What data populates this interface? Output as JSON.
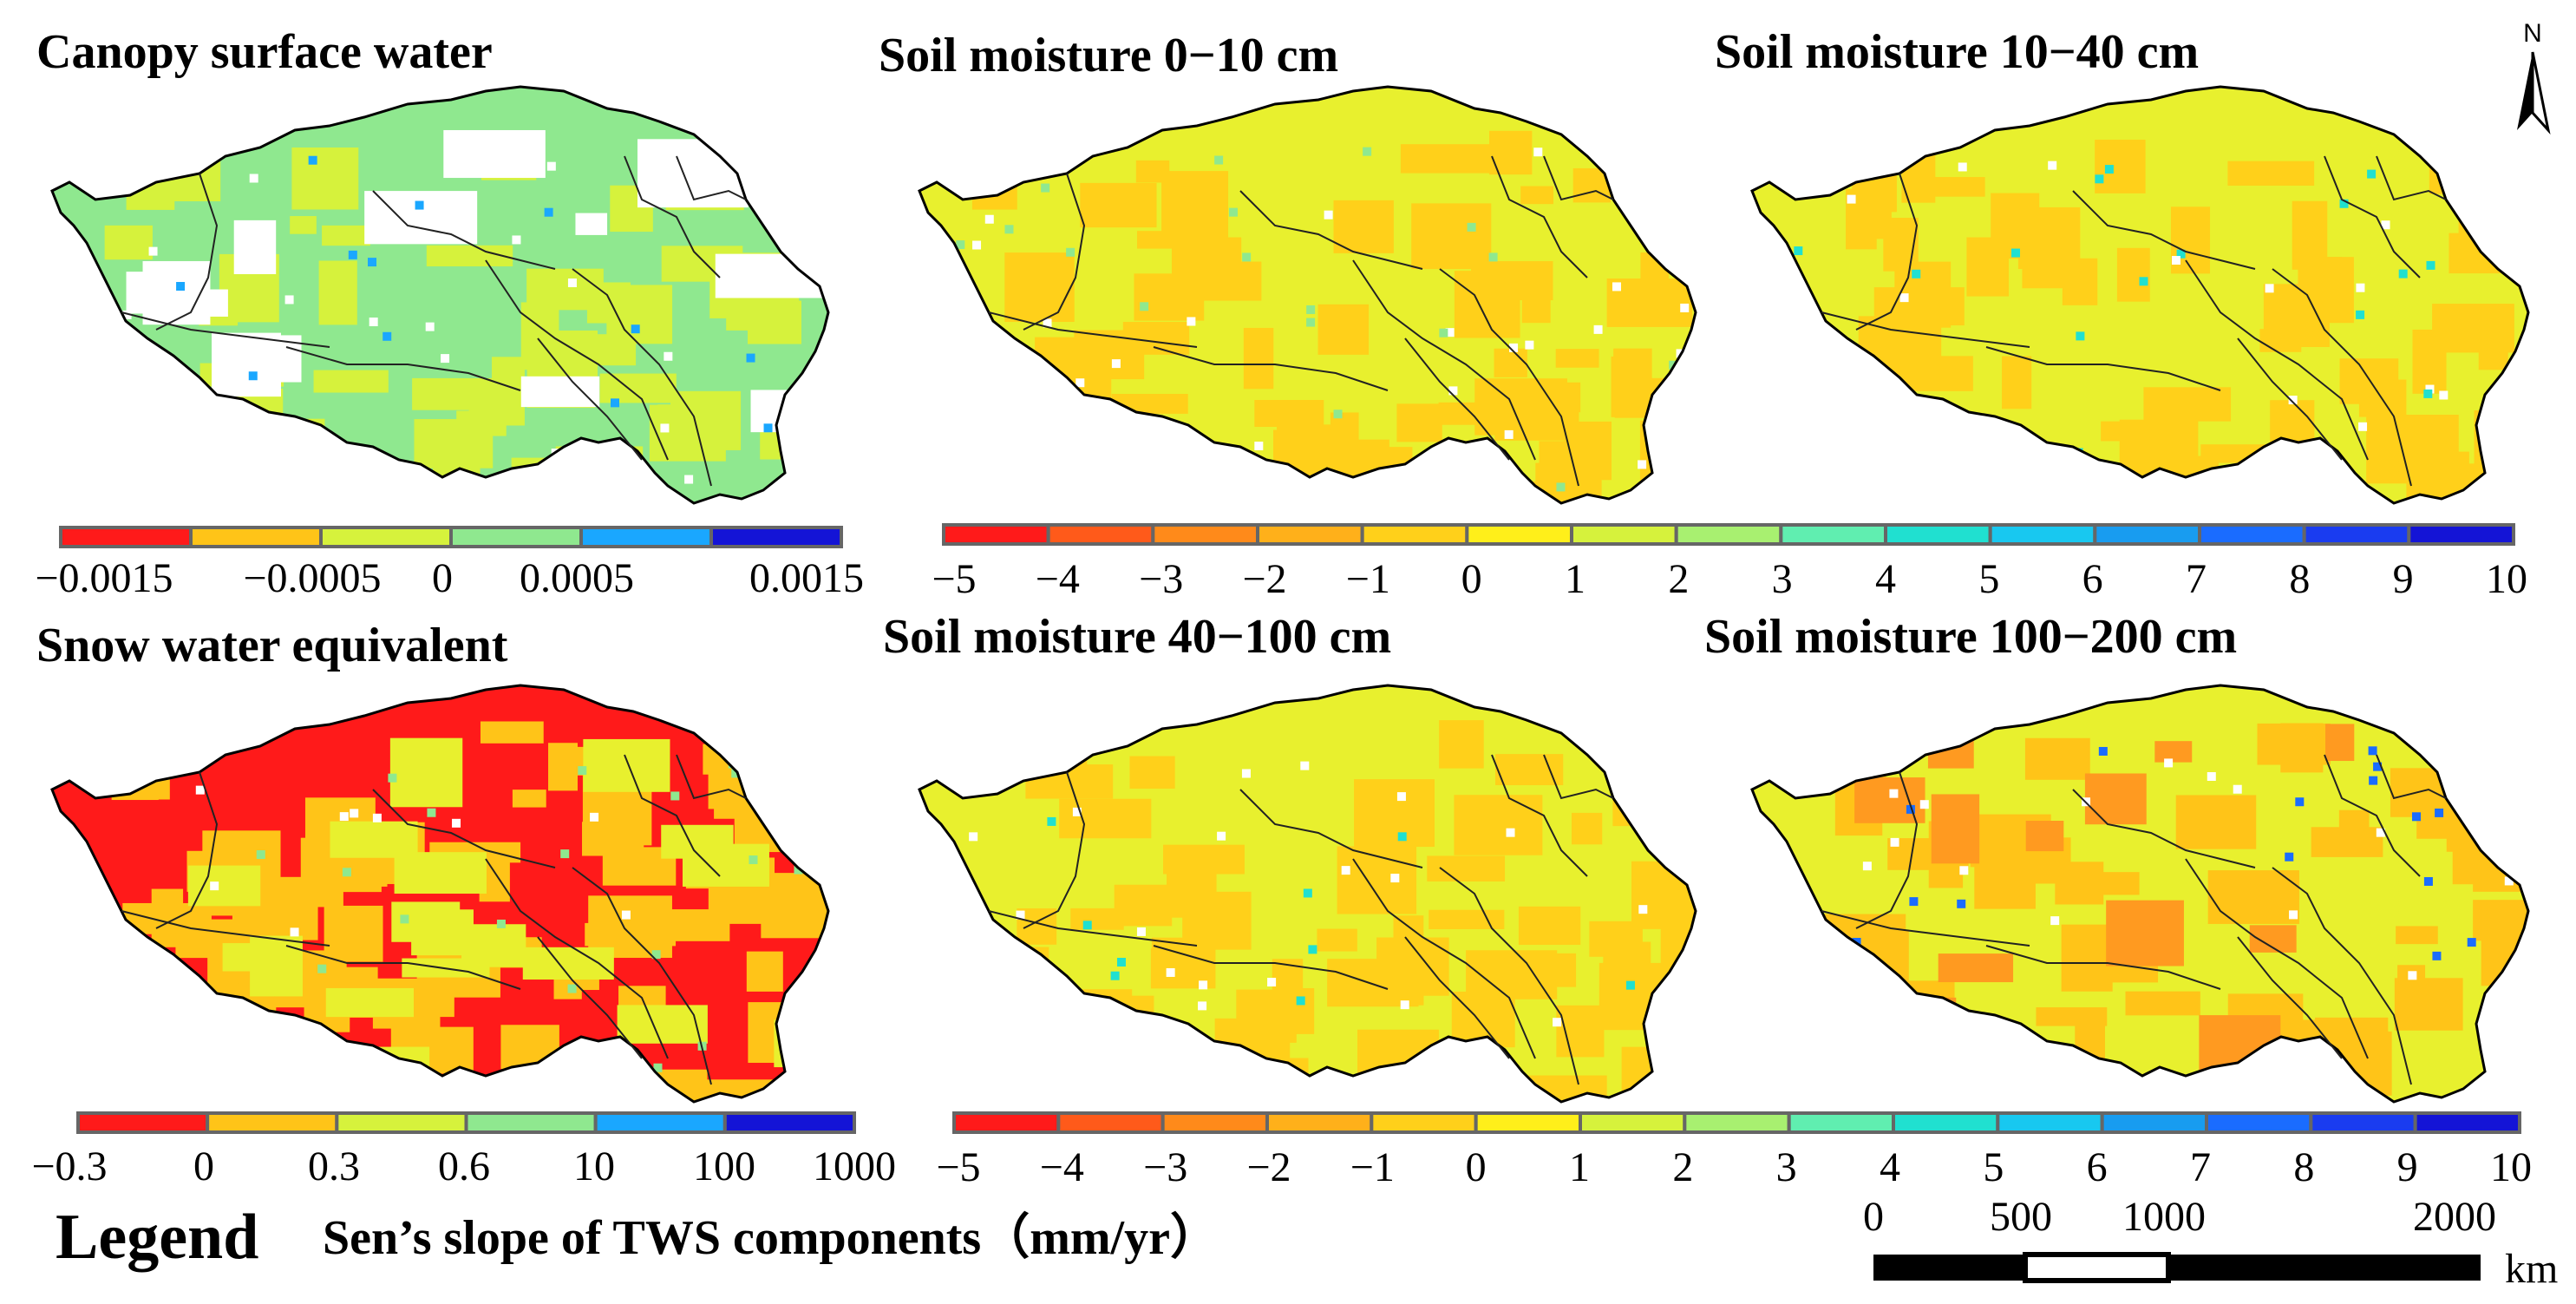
{
  "panels": [
    {
      "title": "Canopy surface water",
      "base": "#8fe88f",
      "patches": [
        "#d6f23c",
        "#ffffff"
      ],
      "spot": "#1aa7ff"
    },
    {
      "title": "Soil moisture 0−10 cm",
      "base": "#e8f02e",
      "patches": [
        "#ffd01a"
      ],
      "spot": "#8fe88f"
    },
    {
      "title": "Soil moisture 10−40 cm",
      "base": "#e8f02e",
      "patches": [
        "#ffd01a"
      ],
      "spot": "#20e0d0"
    },
    {
      "title": "Snow water equivalent",
      "base": "#ff1a1a",
      "patches": [
        "#ffc418",
        "#e8f02e"
      ],
      "spot": "#8fe88f"
    },
    {
      "title": "Soil moisture 40−100 cm",
      "base": "#e8f02e",
      "patches": [
        "#ffd01a"
      ],
      "spot": "#20e0d0"
    },
    {
      "title": "Soil moisture 100−200 cm",
      "base": "#e8f02e",
      "patches": [
        "#ffc418",
        "#ff9a20"
      ],
      "spot": "#1a6cff"
    }
  ],
  "colorbars": {
    "canopy": {
      "colors": [
        "#ff1a1a",
        "#ffc418",
        "#d6f23c",
        "#8fe88f",
        "#1aa7ff",
        "#1414d6"
      ],
      "ticks": [
        "−0.0015",
        "−0.0005",
        "0",
        "0.0005",
        "0.0015"
      ]
    },
    "snow": {
      "colors": [
        "#ff1a1a",
        "#ffc418",
        "#d6f23c",
        "#8fe88f",
        "#1aa7ff",
        "#1414d6"
      ],
      "ticks": [
        "−0.3",
        "0",
        "0.3",
        "0.6",
        "10",
        "100",
        "1000"
      ]
    },
    "soil": {
      "colors": [
        "#ff1a1a",
        "#ff5a1a",
        "#ff8a1a",
        "#ffb01a",
        "#ffd01a",
        "#ffef1a",
        "#d6f23c",
        "#a8f070",
        "#60eeb0",
        "#20e0d0",
        "#18c8f0",
        "#189cf0",
        "#1a6cff",
        "#1a3cf0",
        "#1414d6"
      ],
      "ticks": [
        "−5",
        "−4",
        "−3",
        "−2",
        "−1",
        "0",
        "1",
        "2",
        "3",
        "4",
        "5",
        "6",
        "7",
        "8",
        "9",
        "10"
      ]
    }
  },
  "legend": {
    "word": "Legend",
    "subtitle": "Sen’s slope of TWS components（mm/yr）"
  },
  "scalebar": {
    "ticks": [
      "0",
      "500",
      "1000",
      "2000"
    ],
    "unit": "km"
  },
  "north_label": "N"
}
